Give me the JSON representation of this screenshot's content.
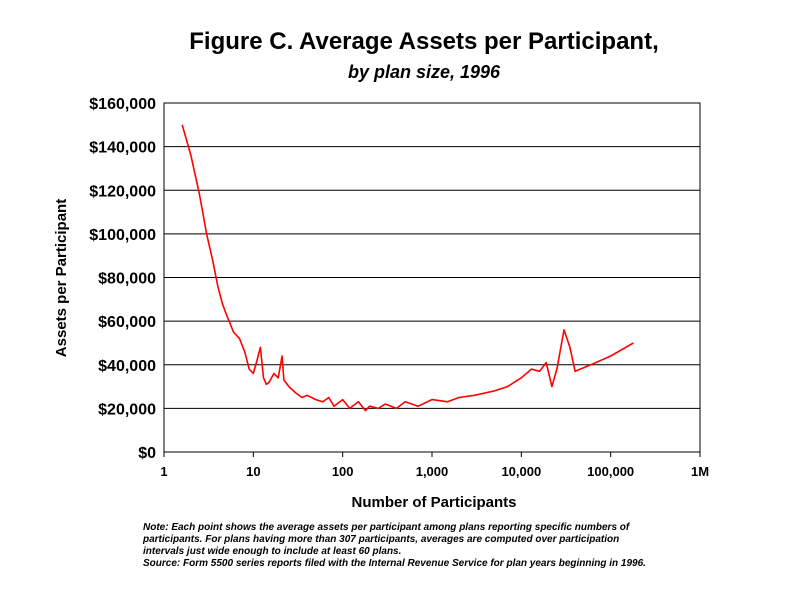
{
  "chart_data": {
    "type": "line",
    "title": "Figure C. Average Assets per Participant,",
    "subtitle": "by plan size, 1996",
    "xlabel": "Number of Participants",
    "ylabel": "Assets per Participant",
    "xscale": "log",
    "xlim": [
      1,
      1000000
    ],
    "ylim": [
      0,
      160000
    ],
    "xticks": [
      {
        "value": 1,
        "label": "1"
      },
      {
        "value": 10,
        "label": "10"
      },
      {
        "value": 100,
        "label": "100"
      },
      {
        "value": 1000,
        "label": "1,000"
      },
      {
        "value": 10000,
        "label": "10,000"
      },
      {
        "value": 100000,
        "label": "100,000"
      },
      {
        "value": 1000000,
        "label": "1M"
      }
    ],
    "yticks": [
      {
        "value": 0,
        "label": "$0"
      },
      {
        "value": 20000,
        "label": "$20,000"
      },
      {
        "value": 40000,
        "label": "$40,000"
      },
      {
        "value": 60000,
        "label": "$60,000"
      },
      {
        "value": 80000,
        "label": "$80,000"
      },
      {
        "value": 100000,
        "label": "$100,000"
      },
      {
        "value": 120000,
        "label": "$120,000"
      },
      {
        "value": 140000,
        "label": "$140,000"
      },
      {
        "value": 160000,
        "label": "$160,000"
      }
    ],
    "grid": "horizontal",
    "series": [
      {
        "name": "Average assets per participant",
        "color": "#ff0000",
        "x": [
          1.6,
          2,
          2.5,
          3,
          3.5,
          4,
          4.5,
          5,
          6,
          7,
          8,
          9,
          10,
          11,
          12,
          13,
          14,
          15,
          17,
          19,
          21,
          22,
          25,
          30,
          35,
          40,
          50,
          60,
          70,
          80,
          100,
          120,
          150,
          180,
          200,
          250,
          300,
          400,
          500,
          700,
          1000,
          1500,
          2000,
          3000,
          5000,
          7000,
          10000,
          13000,
          16000,
          19000,
          22000,
          25000,
          30000,
          35000,
          40000,
          60000,
          100000,
          180000
        ],
        "y": [
          150000,
          136000,
          118000,
          100000,
          88000,
          76000,
          68000,
          63000,
          55000,
          52000,
          46000,
          38000,
          36000,
          42000,
          48000,
          34000,
          31000,
          32000,
          36000,
          34000,
          44000,
          33000,
          30000,
          27000,
          25000,
          26000,
          24000,
          23000,
          25000,
          21000,
          24000,
          20000,
          23000,
          19000,
          21000,
          20000,
          22000,
          20000,
          23000,
          21000,
          24000,
          23000,
          25000,
          26000,
          28000,
          30000,
          34000,
          38000,
          37000,
          41000,
          30000,
          38000,
          56000,
          48000,
          37000,
          40000,
          44000,
          50000
        ]
      }
    ],
    "note": [
      "Note: Each point shows the average assets per participant among plans reporting specific numbers of",
      "participants.  For plans having more than 307 participants, averages are computed over participation",
      "intervals just wide enough to include at least 60 plans.",
      "Source: Form 5500 series reports filed with the Internal Revenue Service for plan years beginning in 1996."
    ]
  }
}
